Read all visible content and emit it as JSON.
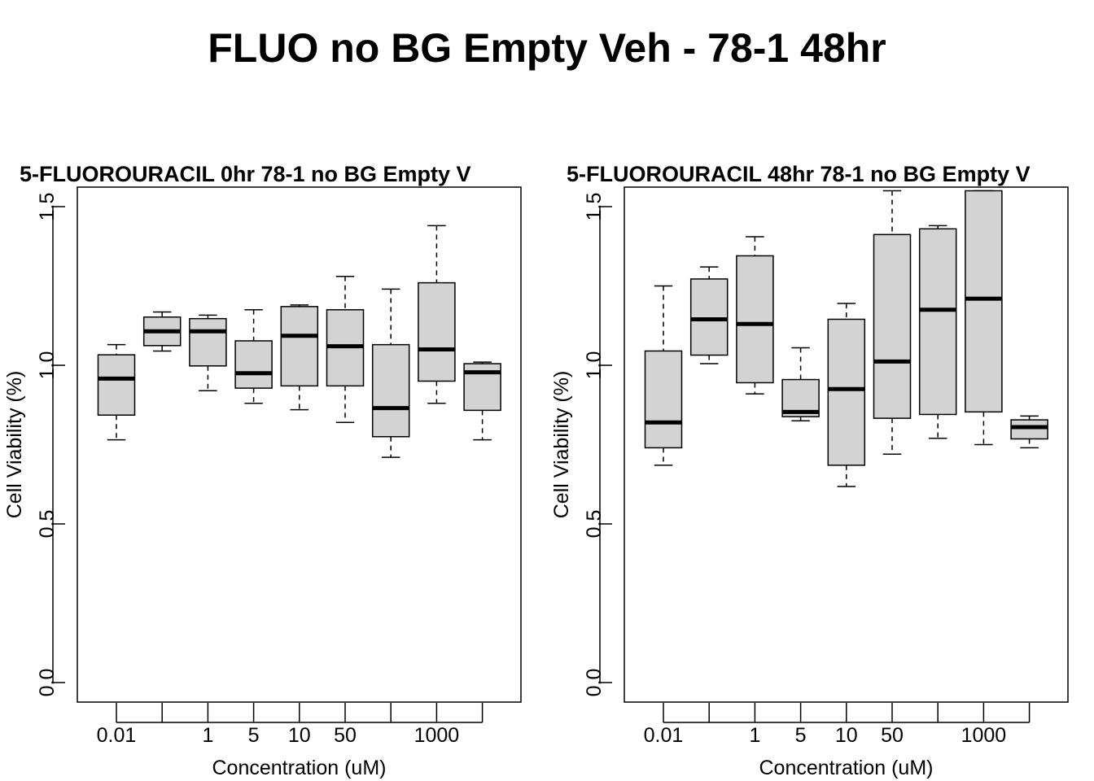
{
  "page_title": "FLUO no BG Empty Veh - 78-1 48hr",
  "chart_data": [
    {
      "type": "boxplot",
      "title": "5-FLUOROURACIL 0hr 78-1 no BG Empty V",
      "xlabel": "Concentration (uM)",
      "ylabel": "Cell Viability (%)",
      "ylim": [
        0,
        1.55
      ],
      "yticks": [
        "0.0",
        "0.5",
        "1.0",
        "1.5"
      ],
      "categories": [
        "0.01",
        "",
        "1",
        "5",
        "10",
        "50",
        "",
        "1000",
        ""
      ],
      "boxes": [
        {
          "whisker_low": 0.765,
          "q1": 0.843,
          "median": 0.958,
          "q3": 1.033,
          "whisker_high": 1.065
        },
        {
          "whisker_low": 1.045,
          "q1": 1.062,
          "median": 1.107,
          "q3": 1.152,
          "whisker_high": 1.168
        },
        {
          "whisker_low": 0.92,
          "q1": 0.998,
          "median": 1.107,
          "q3": 1.147,
          "whisker_high": 1.158
        },
        {
          "whisker_low": 0.88,
          "q1": 0.928,
          "median": 0.975,
          "q3": 1.077,
          "whisker_high": 1.175
        },
        {
          "whisker_low": 0.86,
          "q1": 0.935,
          "median": 1.093,
          "q3": 1.185,
          "whisker_high": 1.19
        },
        {
          "whisker_low": 0.82,
          "q1": 0.935,
          "median": 1.06,
          "q3": 1.175,
          "whisker_high": 1.28
        },
        {
          "whisker_low": 0.71,
          "q1": 0.775,
          "median": 0.865,
          "q3": 1.065,
          "whisker_high": 1.24
        },
        {
          "whisker_low": 0.88,
          "q1": 0.95,
          "median": 1.05,
          "q3": 1.26,
          "whisker_high": 1.44
        },
        {
          "whisker_low": 0.765,
          "q1": 0.858,
          "median": 0.978,
          "q3": 1.005,
          "whisker_high": 1.01
        }
      ]
    },
    {
      "type": "boxplot",
      "title": "5-FLUOROURACIL 48hr 78-1 no BG Empty V",
      "xlabel": "Concentration (uM)",
      "ylabel": "Cell Viability (%)",
      "ylim": [
        0,
        1.55
      ],
      "yticks": [
        "0.0",
        "0.5",
        "1.0",
        "1.5"
      ],
      "categories": [
        "0.01",
        "",
        "1",
        "5",
        "10",
        "50",
        "",
        "1000",
        ""
      ],
      "boxes": [
        {
          "whisker_low": 0.685,
          "q1": 0.74,
          "median": 0.82,
          "q3": 1.045,
          "whisker_high": 1.25
        },
        {
          "whisker_low": 1.005,
          "q1": 1.032,
          "median": 1.145,
          "q3": 1.272,
          "whisker_high": 1.31
        },
        {
          "whisker_low": 0.91,
          "q1": 0.945,
          "median": 1.13,
          "q3": 1.345,
          "whisker_high": 1.405
        },
        {
          "whisker_low": 0.825,
          "q1": 0.838,
          "median": 0.853,
          "q3": 0.955,
          "whisker_high": 1.055
        },
        {
          "whisker_low": 0.618,
          "q1": 0.685,
          "median": 0.925,
          "q3": 1.145,
          "whisker_high": 1.195
        },
        {
          "whisker_low": 0.72,
          "q1": 0.833,
          "median": 1.012,
          "q3": 1.412,
          "whisker_high": 1.55
        },
        {
          "whisker_low": 0.77,
          "q1": 0.845,
          "median": 1.175,
          "q3": 1.43,
          "whisker_high": 1.44
        },
        {
          "whisker_low": 0.75,
          "q1": 0.853,
          "median": 1.21,
          "q3": 1.55,
          "whisker_high": 1.55
        },
        {
          "whisker_low": 0.74,
          "q1": 0.768,
          "median": 0.805,
          "q3": 0.828,
          "whisker_high": 0.84
        }
      ]
    }
  ],
  "colors": {
    "box_fill": "#d3d3d3",
    "stroke": "#000000"
  }
}
